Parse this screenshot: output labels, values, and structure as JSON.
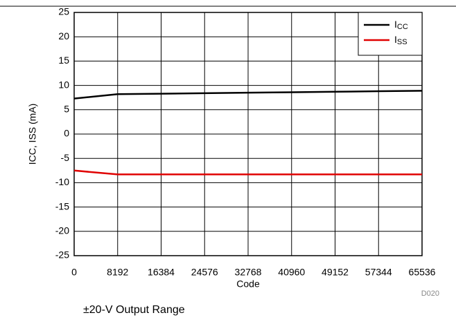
{
  "chart_data": {
    "type": "line",
    "x": [
      0,
      8192,
      16384,
      24576,
      32768,
      40960,
      49152,
      57344,
      65536
    ],
    "series": [
      {
        "name": "ICC",
        "color": "#000000",
        "values": [
          7.3,
          8.2,
          8.3,
          8.4,
          8.5,
          8.6,
          8.7,
          8.8,
          8.9
        ]
      },
      {
        "name": "ISS",
        "color": "#e00000",
        "values": [
          -7.5,
          -8.3,
          -8.3,
          -8.3,
          -8.3,
          -8.3,
          -8.3,
          -8.3,
          -8.3
        ]
      }
    ],
    "xlabel": "Code",
    "ylabel": "ICC, ISS (mA)",
    "xlim": [
      0,
      65536
    ],
    "xticks": [
      0,
      8192,
      16384,
      24576,
      32768,
      40960,
      49152,
      57344,
      65536
    ],
    "ylim": [
      -25,
      25
    ],
    "yticks": [
      -25,
      -20,
      -15,
      -10,
      -5,
      0,
      5,
      10,
      15,
      20,
      25
    ],
    "grid": true,
    "legend": "upper right",
    "annotation": "D020",
    "caption": "±20-V Output Range"
  }
}
